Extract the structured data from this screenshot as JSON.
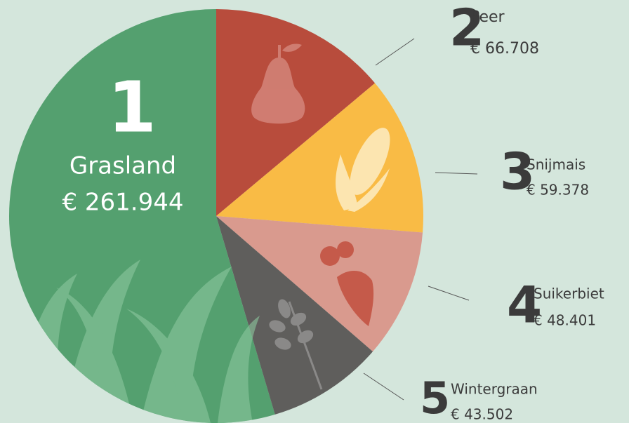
{
  "chart_data": {
    "type": "pie",
    "categories": [
      "Grasland",
      "Peer",
      "Snijmais",
      "Suikerbiet",
      "Wintergraan"
    ],
    "values": [
      261944,
      66708,
      59378,
      48401,
      43502
    ],
    "value_labels": [
      "€ 261.944",
      "€ 66.708",
      "€ 59.378",
      "€ 48.401",
      "€ 43.502"
    ],
    "ranks": [
      1,
      2,
      3,
      4,
      5
    ],
    "colors": [
      "#54a06f",
      "#b84c3c",
      "#f9bb45",
      "#d99a8e",
      "#5f5e5c"
    ]
  }
}
